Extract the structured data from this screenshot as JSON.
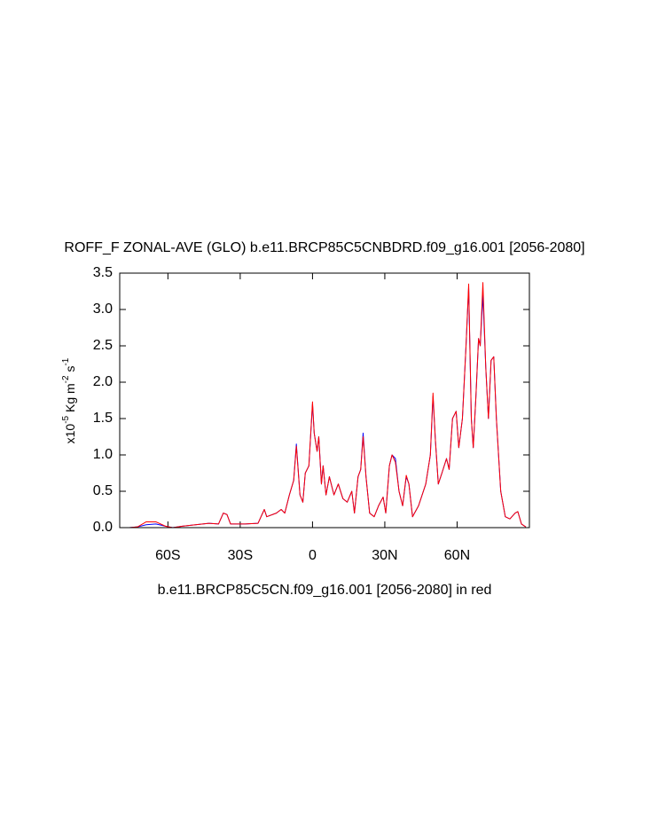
{
  "chart_data": {
    "type": "line",
    "title": "ROFF_F ZONAL-AVE (GLO) b.e11.BRCP85C5CNBDRD.f09_g16.001 [2056-2080]",
    "xlabel": "b.e11.BRCP85C5CN.f09_g16.001 [2056-2080] in red",
    "ylabel": [
      "x10",
      "-5",
      " Kg m",
      "-2",
      " s",
      "-1"
    ],
    "x": [
      -80,
      -76,
      -72.6,
      -69,
      -65,
      -61,
      -58,
      -54,
      -48.5,
      -43,
      -39,
      -37,
      -35.5,
      -34,
      -28,
      -22.6,
      -20,
      -19,
      -15,
      -13,
      -11.5,
      -9.6,
      -7.8,
      -6.7,
      -5.2,
      -4,
      -3,
      -1.5,
      0,
      0.7,
      1.9,
      2.6,
      3.7,
      4.4,
      5.6,
      7,
      8.9,
      10.7,
      12.6,
      14.4,
      16.3,
      17.4,
      18.9,
      20,
      21,
      22.2,
      23.7,
      25.6,
      27.4,
      29.3,
      30.4,
      31.9,
      33,
      34.4,
      35.9,
      37.4,
      38.9,
      40,
      41.5,
      44,
      47,
      48.9,
      50,
      51,
      52.2,
      53.7,
      55.6,
      56.7,
      58.1,
      59.6,
      60.7,
      62.2,
      63.7,
      64.8,
      65.9,
      66.7,
      67.8,
      68.9,
      69.6,
      70.7,
      71.9,
      73,
      74.1,
      75.2,
      76.3,
      78.1,
      80,
      81.9,
      84.1,
      85.2,
      86.7,
      88.5
    ],
    "series": [
      {
        "color": "#0000ff",
        "values": [
          0,
          0,
          0.01,
          0.04,
          0.05,
          0.02,
          0,
          0.02,
          0.04,
          0.06,
          0.05,
          0.2,
          0.18,
          0.05,
          0.05,
          0.06,
          0.25,
          0.15,
          0.2,
          0.25,
          0.2,
          0.45,
          0.65,
          1.15,
          0.45,
          0.35,
          0.75,
          0.85,
          1.7,
          1.3,
          1.05,
          1.25,
          0.6,
          0.85,
          0.45,
          0.7,
          0.45,
          0.6,
          0.4,
          0.35,
          0.5,
          0.2,
          0.7,
          0.8,
          1.3,
          0.7,
          0.2,
          0.15,
          0.3,
          0.42,
          0.2,
          0.85,
          1.0,
          0.95,
          0.5,
          0.3,
          0.7,
          0.6,
          0.15,
          0.3,
          0.6,
          1.0,
          1.8,
          1.2,
          0.6,
          0.75,
          0.95,
          0.8,
          1.5,
          1.6,
          1.1,
          1.5,
          2.5,
          3.3,
          1.5,
          1.1,
          1.8,
          2.6,
          2.5,
          3.2,
          2.2,
          1.5,
          2.3,
          2.35,
          1.5,
          0.5,
          0.15,
          0.12,
          0.2,
          0.22,
          0.05,
          0.01
        ]
      },
      {
        "color": "#ff0000",
        "values": [
          0,
          0,
          0.01,
          0.08,
          0.08,
          0.02,
          0,
          0.02,
          0.04,
          0.06,
          0.05,
          0.2,
          0.18,
          0.05,
          0.05,
          0.06,
          0.25,
          0.15,
          0.2,
          0.25,
          0.2,
          0.45,
          0.65,
          1.12,
          0.45,
          0.35,
          0.75,
          0.85,
          1.73,
          1.3,
          1.05,
          1.25,
          0.6,
          0.85,
          0.45,
          0.7,
          0.45,
          0.6,
          0.4,
          0.35,
          0.5,
          0.2,
          0.7,
          0.8,
          1.25,
          0.7,
          0.2,
          0.15,
          0.3,
          0.42,
          0.2,
          0.85,
          1.0,
          0.9,
          0.5,
          0.3,
          0.72,
          0.6,
          0.15,
          0.3,
          0.6,
          1.0,
          1.85,
          1.2,
          0.6,
          0.75,
          0.95,
          0.8,
          1.5,
          1.6,
          1.1,
          1.5,
          2.5,
          3.35,
          1.5,
          1.1,
          1.8,
          2.6,
          2.5,
          3.37,
          2.2,
          1.5,
          2.3,
          2.35,
          1.5,
          0.5,
          0.15,
          0.12,
          0.2,
          0.22,
          0.05,
          0.01
        ]
      }
    ],
    "xlim": [
      -80,
      90
    ],
    "xticks": [
      {
        "value": -60,
        "label": "60S"
      },
      {
        "value": -30,
        "label": "30S"
      },
      0,
      {
        "value": 30,
        "label": "30N"
      },
      {
        "value": 60,
        "label": "60N"
      }
    ],
    "ylim": [
      0,
      3.5
    ],
    "yticks": [
      {
        "value": 0,
        "label": "0.0"
      },
      0.5,
      {
        "value": 1,
        "label": "1.0"
      },
      1.5,
      {
        "value": 2,
        "label": "2.0"
      },
      2.5,
      {
        "value": 3,
        "label": "3.0"
      },
      3.5
    ],
    "grid": false
  }
}
